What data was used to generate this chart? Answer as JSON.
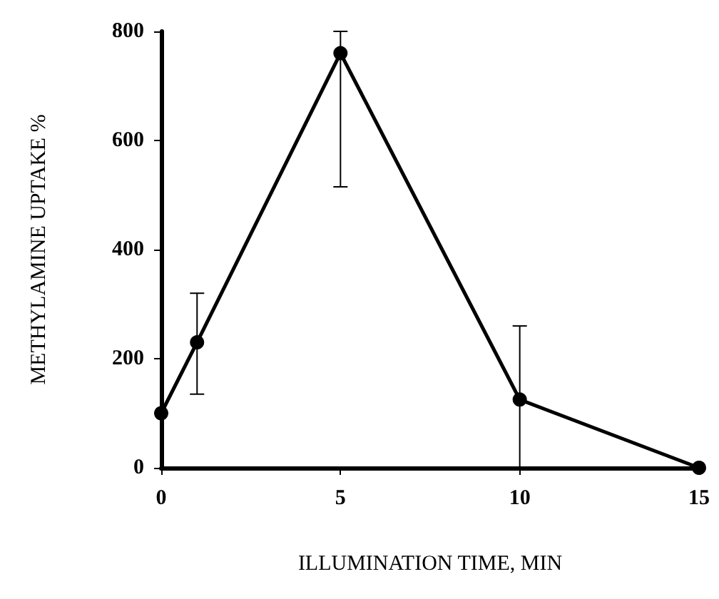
{
  "chart_data": {
    "type": "line",
    "xlabel": "ILLUMINATION TIME, MIN",
    "ylabel": "METHYLAMINE UPTAKE %",
    "x": [
      0,
      1,
      5,
      10,
      15
    ],
    "series": [
      {
        "color": "#000000",
        "values": [
          100,
          230,
          760,
          125,
          0
        ],
        "errors": [
          null,
          [
            135,
            320
          ],
          [
            515,
            800
          ],
          [
            0,
            260
          ],
          null
        ]
      }
    ],
    "xlim": [
      0,
      15
    ],
    "xticks": [
      0,
      5,
      10,
      15
    ],
    "ylim": [
      0,
      800
    ],
    "yticks": [
      0,
      200,
      400,
      600,
      800
    ],
    "grid": false,
    "marker": "circle",
    "line_style": "solid"
  }
}
